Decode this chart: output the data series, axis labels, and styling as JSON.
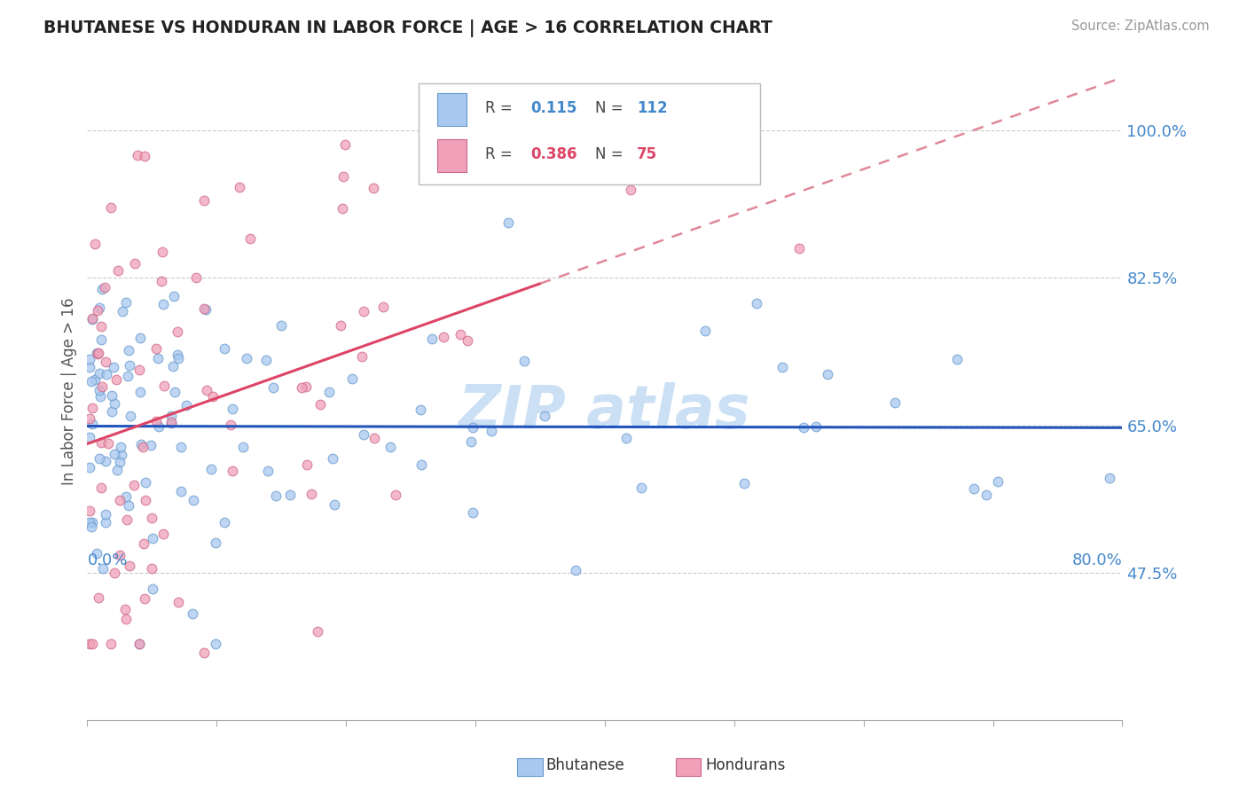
{
  "title": "BHUTANESE VS HONDURAN IN LABOR FORCE | AGE > 16 CORRELATION CHART",
  "source_text": "Source: ZipAtlas.com",
  "ylabel_axis_label": "In Labor Force | Age > 16",
  "legend_label1": "Bhutanese",
  "legend_label2": "Hondurans",
  "R1": 0.115,
  "N1": 112,
  "R2": 0.386,
  "N2": 75,
  "color_bhutanese_fill": "#a8c8f0",
  "color_bhutanese_edge": "#6699cc",
  "color_honduran_fill": "#f0a0b8",
  "color_honduran_edge": "#cc6688",
  "color_trend_blue": "#2255bb",
  "color_trend_pink": "#dd4466",
  "color_trend_pink_dash": "#e08898",
  "color_title": "#222222",
  "color_source": "#999999",
  "color_axis_blue": "#4488cc",
  "watermark_color": "#cce0f5",
  "xmin": 0.0,
  "xmax": 0.8,
  "ymin": 0.3,
  "ymax": 1.08,
  "yticks": [
    0.475,
    0.65,
    0.825,
    1.0
  ],
  "ytick_labels": [
    "47.5%",
    "65.0%",
    "82.5%",
    "100.0%"
  ],
  "xtick_positions": [
    0.0,
    0.1,
    0.2,
    0.3,
    0.4,
    0.5,
    0.6,
    0.7,
    0.8
  ],
  "grid_y_dashed": true,
  "seed": 99
}
